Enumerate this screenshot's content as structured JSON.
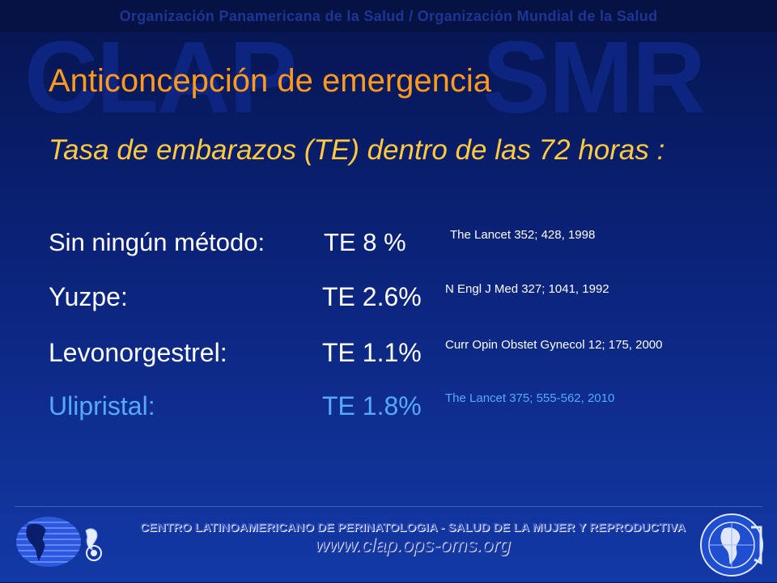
{
  "header": {
    "banner": "Organización Panamericana de la Salud / Organización Mundial de la Salud",
    "watermark_left": "CLAP",
    "watermark_right": "SMR"
  },
  "slide": {
    "title": "Anticoncepción de emergencia",
    "subtitle": "Tasa de embarazos (TE) dentro de las 72 horas :",
    "rows": [
      {
        "label": "Sin ningún método:",
        "value": "TE 8  %",
        "ref": "The Lancet 352; 428, 1998"
      },
      {
        "label": "Yuzpe:",
        "value": "TE 2.6%",
        "ref": "N Engl J Med 327; 1041, 1992"
      },
      {
        "label": "Levonorgestrel:",
        "value": "TE 1.1%",
        "ref": "Curr Opin Obstet Gynecol 12; 175, 2000"
      },
      {
        "label": "Ulipristal:",
        "value": "TE 1.8%",
        "ref": "The Lancet 375; 555-562, 2010"
      }
    ]
  },
  "footer": {
    "org": "CENTRO LATINOAMERICANO DE PERINATOLOGIA - SALUD DE LA MUJER Y REPRODUCTIVA",
    "url": "www.clap.ops-oms.org"
  },
  "icons": {
    "left_logo": "clap-globe-logo-icon",
    "right_logo": "ops-seal-logo-icon"
  },
  "colors": {
    "background": "#0a2176",
    "title": "#ff9a1f",
    "subtitle": "#ffc940",
    "highlight_row": "#57a8ff"
  }
}
